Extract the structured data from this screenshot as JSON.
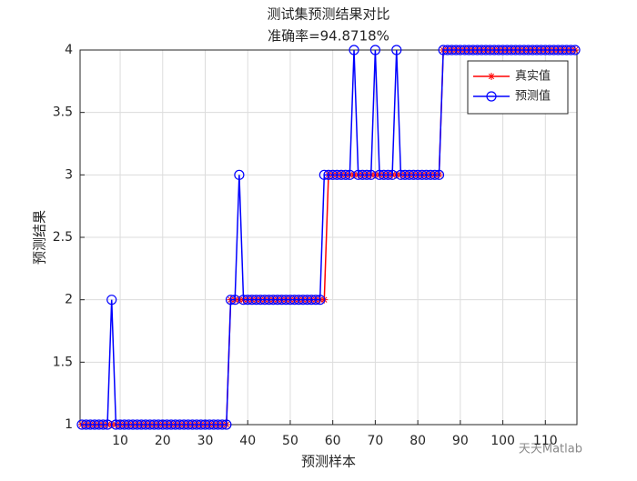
{
  "chart_data": {
    "type": "line",
    "title": "测试集预测结果对比",
    "subtitle": "准确率=94.8718%",
    "x_label": "预测样本",
    "y_label": "预测结果",
    "watermark": "天天Matlab",
    "x": [
      1,
      2,
      3,
      4,
      5,
      6,
      7,
      8,
      9,
      10,
      11,
      12,
      13,
      14,
      15,
      16,
      17,
      18,
      19,
      20,
      21,
      22,
      23,
      24,
      25,
      26,
      27,
      28,
      29,
      30,
      31,
      32,
      33,
      34,
      35,
      36,
      37,
      38,
      39,
      40,
      41,
      42,
      43,
      44,
      45,
      46,
      47,
      48,
      49,
      50,
      51,
      52,
      53,
      54,
      55,
      56,
      57,
      58,
      59,
      60,
      61,
      62,
      63,
      64,
      65,
      66,
      67,
      68,
      69,
      70,
      71,
      72,
      73,
      74,
      75,
      76,
      77,
      78,
      79,
      80,
      81,
      82,
      83,
      84,
      85,
      86,
      87,
      88,
      89,
      90,
      91,
      92,
      93,
      94,
      95,
      96,
      97,
      98,
      99,
      100,
      101,
      102,
      103,
      104,
      105,
      106,
      107,
      108,
      109,
      110,
      111,
      112,
      113,
      114,
      115,
      116,
      117
    ],
    "series": [
      {
        "name": "真实值",
        "color": "#ff0000",
        "marker": "star",
        "values": [
          1,
          1,
          1,
          1,
          1,
          1,
          1,
          1,
          1,
          1,
          1,
          1,
          1,
          1,
          1,
          1,
          1,
          1,
          1,
          1,
          1,
          1,
          1,
          1,
          1,
          1,
          1,
          1,
          1,
          1,
          1,
          1,
          1,
          1,
          1,
          2,
          2,
          2,
          2,
          2,
          2,
          2,
          2,
          2,
          2,
          2,
          2,
          2,
          2,
          2,
          2,
          2,
          2,
          2,
          2,
          2,
          2,
          2,
          3,
          3,
          3,
          3,
          3,
          3,
          3,
          3,
          3,
          3,
          3,
          3,
          3,
          3,
          3,
          3,
          3,
          3,
          3,
          3,
          3,
          3,
          3,
          3,
          3,
          3,
          3,
          4,
          4,
          4,
          4,
          4,
          4,
          4,
          4,
          4,
          4,
          4,
          4,
          4,
          4,
          4,
          4,
          4,
          4,
          4,
          4,
          4,
          4,
          4,
          4,
          4,
          4,
          4,
          4,
          4,
          4,
          4,
          4
        ]
      },
      {
        "name": "预测值",
        "color": "#0000ff",
        "marker": "circle",
        "values": [
          1,
          1,
          1,
          1,
          1,
          1,
          1,
          2,
          1,
          1,
          1,
          1,
          1,
          1,
          1,
          1,
          1,
          1,
          1,
          1,
          1,
          1,
          1,
          1,
          1,
          1,
          1,
          1,
          1,
          1,
          1,
          1,
          1,
          1,
          1,
          2,
          2,
          3,
          2,
          2,
          2,
          2,
          2,
          2,
          2,
          2,
          2,
          2,
          2,
          2,
          2,
          2,
          2,
          2,
          2,
          2,
          2,
          3,
          3,
          3,
          3,
          3,
          3,
          3,
          4,
          3,
          3,
          3,
          3,
          4,
          3,
          3,
          3,
          3,
          4,
          3,
          3,
          3,
          3,
          3,
          3,
          3,
          3,
          3,
          3,
          4,
          4,
          4,
          4,
          4,
          4,
          4,
          4,
          4,
          4,
          4,
          4,
          4,
          4,
          4,
          4,
          4,
          4,
          4,
          4,
          4,
          4,
          4,
          4,
          4,
          4,
          4,
          4,
          4,
          4,
          4,
          4
        ]
      }
    ],
    "xlim": [
      1,
      117
    ],
    "ylim": [
      1,
      4
    ],
    "xticks": [
      10,
      20,
      30,
      40,
      50,
      60,
      70,
      80,
      90,
      100,
      110
    ],
    "yticks": [
      1,
      1.5,
      2,
      2.5,
      3,
      3.5,
      4
    ],
    "grid": true,
    "legend": "northeast"
  }
}
